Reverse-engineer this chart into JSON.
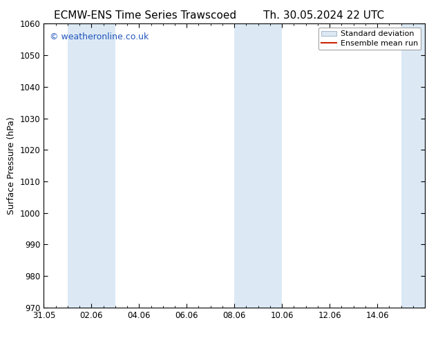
{
  "title_left": "ECMW-ENS Time Series Trawscoed",
  "title_right": "Th. 30.05.2024 22 UTC",
  "ylabel": "Surface Pressure (hPa)",
  "ylim": [
    970,
    1060
  ],
  "yticks": [
    970,
    980,
    990,
    1000,
    1010,
    1020,
    1030,
    1040,
    1050,
    1060
  ],
  "xlim_start": 0,
  "xlim_end": 16,
  "xtick_labels": [
    "31.05",
    "02.06",
    "04.06",
    "06.06",
    "08.06",
    "10.06",
    "12.06",
    "14.06"
  ],
  "xtick_positions": [
    0,
    2,
    4,
    6,
    8,
    10,
    12,
    14
  ],
  "shaded_bands": [
    {
      "x_start": 1.0,
      "x_end": 3.0
    },
    {
      "x_start": 8.0,
      "x_end": 10.0
    },
    {
      "x_start": 15.0,
      "x_end": 16.0
    }
  ],
  "shade_color": "#dce9f5",
  "shade_alpha": 1.0,
  "watermark_text": "© weatheronline.co.uk",
  "watermark_color": "#2255bb",
  "watermark_fontsize": 9,
  "legend_std_label": "Standard deviation",
  "legend_mean_label": "Ensemble mean run",
  "legend_mean_color": "#cc2200",
  "legend_std_facecolor": "#dce9f5",
  "legend_std_edgecolor": "#aabbcc",
  "background_color": "#ffffff",
  "title_fontsize": 11,
  "ylabel_fontsize": 9,
  "tick_fontsize": 8.5,
  "legend_fontsize": 8
}
